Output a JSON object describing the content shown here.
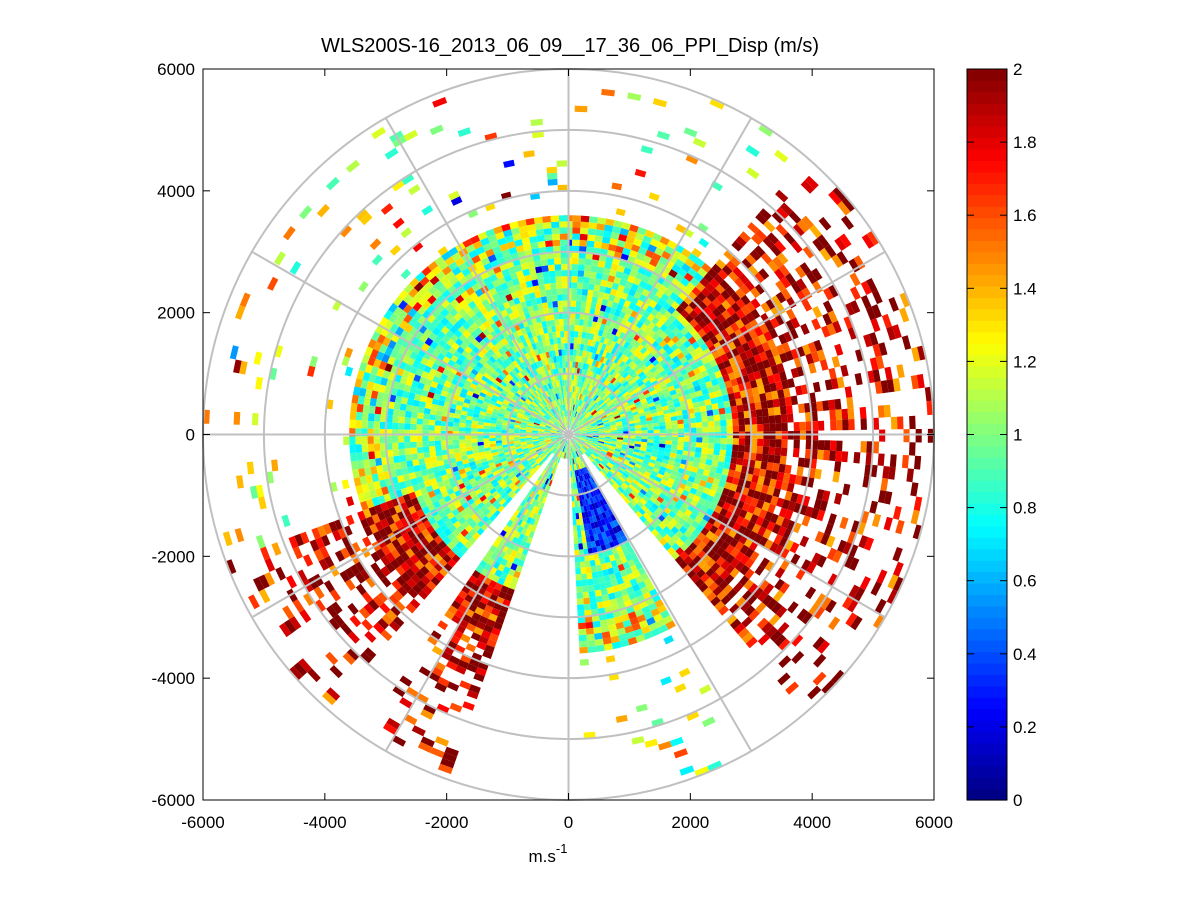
{
  "chart_data": {
    "type": "heatmap",
    "subtype": "polar-ppi",
    "title": "WLS200S-16_2013_06_09__17_36_06_PPI_Disp (m/s)",
    "xlabel": "m.s",
    "xlabel_superscript": "-1",
    "ylabel": "",
    "xlim": [
      -6000,
      6000
    ],
    "ylim": [
      -6000,
      6000
    ],
    "xticks": [
      -6000,
      -4000,
      -2000,
      0,
      2000,
      4000,
      6000
    ],
    "yticks": [
      6000,
      4000,
      2000,
      0,
      -2000,
      -4000,
      -6000
    ],
    "xtick_labels": [
      "-6000",
      "-4000",
      "-2000",
      "0",
      "2000",
      "4000",
      "6000"
    ],
    "ytick_labels": [
      "6000",
      "4000",
      "2000",
      "0",
      "-2000",
      "-4000",
      "-6000"
    ],
    "polar_grid": {
      "ring_radii": [
        1000,
        2000,
        3000,
        4000,
        5000,
        6000
      ],
      "spoke_angles_deg": [
        0,
        30,
        60,
        90,
        120,
        150,
        180,
        210,
        240,
        270,
        300,
        330
      ],
      "grid_color": "#c0c0c0"
    },
    "data_extent_radius": 6000,
    "colorbar": {
      "colormap": "jet",
      "min": 0,
      "max": 2,
      "ticks": [
        0,
        0.2,
        0.4,
        0.6,
        0.8,
        1,
        1.2,
        1.4,
        1.6,
        1.8,
        2
      ],
      "tick_labels": [
        "0",
        "0.2",
        "0.4",
        "0.6",
        "0.8",
        "1",
        "1.2",
        "1.4",
        "1.6",
        "1.8",
        "2"
      ],
      "levels": 64
    },
    "field_description": {
      "inner_radius_max_value": 3500,
      "typical_inner_value": 1.0,
      "high_value_sectors_deg": [
        [
          40,
          150
        ],
        [
          195,
          250
        ]
      ],
      "low_value_sector_deg": [
        [
          150,
          170
        ]
      ],
      "gap_sectors_deg": [
        [
          140,
          150
        ],
        [
          178,
          200
        ],
        [
          215,
          222
        ]
      ]
    }
  }
}
